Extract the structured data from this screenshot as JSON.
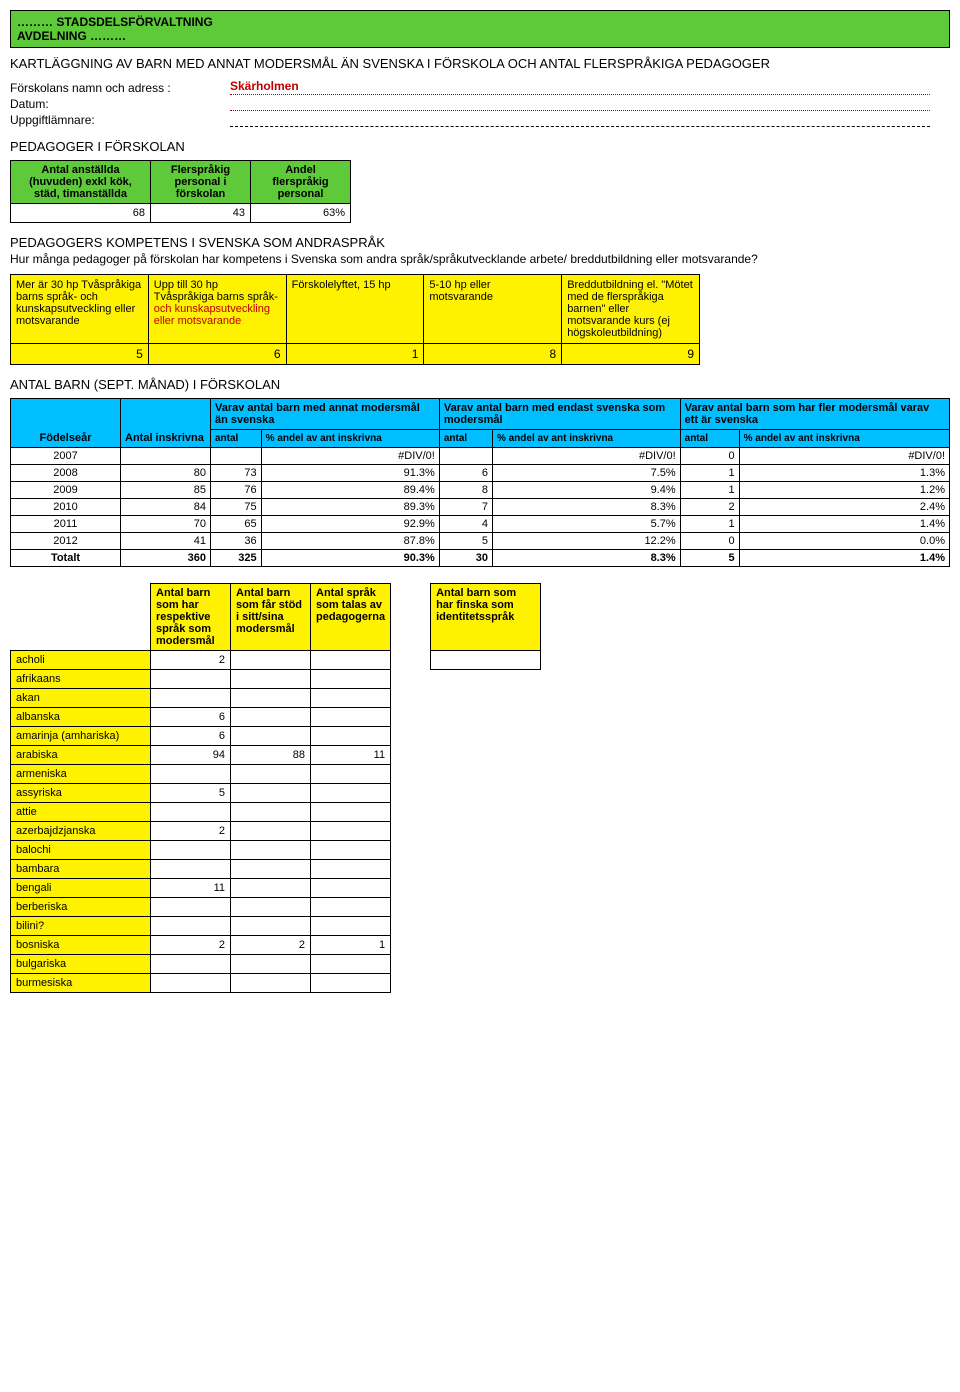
{
  "header": {
    "line1": "……… STADSDELSFÖRVALTNING",
    "line2": "AVDELNING ………"
  },
  "title": "KARTLÄGGNING AV BARN MED ANNAT MODERSMÅL ÄN SVENSKA I FÖRSKOLA OCH ANTAL FLERSPRÅKIGA PEDAGOGER",
  "info": {
    "label1": "Förskolans namn och adress :",
    "val1": "Skärholmen",
    "label2": "Datum:",
    "label3": "Uppgiftlämnare:"
  },
  "section1": "PEDAGOGER I FÖRSKOLAN",
  "t1": {
    "h1": "Antal anställda (huvuden) exkl kök, städ, timanställda",
    "h2": "Flerspråkig personal i förskolan",
    "h3": "Andel flerspråkig personal",
    "v1": "68",
    "v2": "43",
    "v3": "63%"
  },
  "section2_title": "PEDAGOGERS KOMPETENS I SVENSKA SOM ANDRASPRÅK",
  "section2_text": "Hur många pedagoger på förskolan har kompetens i Svenska som andra språk/språkutvecklande arbete/ breddutbildning eller motsvarande?",
  "t2": {
    "h1": "Mer är 30 hp Tvåspråkiga barns språk- och kunskapsutveckling eller motsvarande",
    "h2": "Upp till 30 hp Tvåspråkiga barns språk- och kunskapsutveckling eller motsvarande",
    "h2_black": "Upp till 30 hp Tvåspråkiga barns språk-",
    "h2_red": "och kunskapsutveckling eller motsvarande",
    "h3": "Förskolelyftet, 15 hp",
    "h4": "5-10 hp eller motsvarande",
    "h5": "Breddutbildning el. \"Mötet med de flerspråkiga barnen\" eller motsvarande kurs (ej högskoleutbildning)",
    "v1": "5",
    "v2": "6",
    "v3": "1",
    "v4": "8",
    "v5": "9"
  },
  "section3": "ANTAL BARN (SEPT. MÅNAD) I FÖRSKOLAN",
  "t3": {
    "h_year": "Födelseår",
    "h_enrolled": "Antal inskrivna",
    "h_group1": "Varav antal barn med annat modersmål än svenska",
    "h_group2": "Varav antal barn med endast svenska som modersmål",
    "h_group3": "Varav antal barn som har fler modersmål varav ett är svenska",
    "sub_a": "antal",
    "sub_p": "% andel av ant inskrivna",
    "rows": [
      {
        "year": "2007",
        "enrolled": "",
        "a1": "",
        "p1": "#DIV/0!",
        "a2": "",
        "p2": "#DIV/0!",
        "a3": "0",
        "p3": "#DIV/0!"
      },
      {
        "year": "2008",
        "enrolled": "80",
        "a1": "73",
        "p1": "91.3%",
        "a2": "6",
        "p2": "7.5%",
        "a3": "1",
        "p3": "1.3%"
      },
      {
        "year": "2009",
        "enrolled": "85",
        "a1": "76",
        "p1": "89.4%",
        "a2": "8",
        "p2": "9.4%",
        "a3": "1",
        "p3": "1.2%"
      },
      {
        "year": "2010",
        "enrolled": "84",
        "a1": "75",
        "p1": "89.3%",
        "a2": "7",
        "p2": "8.3%",
        "a3": "2",
        "p3": "2.4%"
      },
      {
        "year": "2011",
        "enrolled": "70",
        "a1": "65",
        "p1": "92.9%",
        "a2": "4",
        "p2": "5.7%",
        "a3": "1",
        "p3": "1.4%"
      },
      {
        "year": "2012",
        "enrolled": "41",
        "a1": "36",
        "p1": "87.8%",
        "a2": "5",
        "p2": "12.2%",
        "a3": "0",
        "p3": "0.0%"
      },
      {
        "year": "Totalt",
        "enrolled": "360",
        "a1": "325",
        "p1": "90.3%",
        "a2": "30",
        "p2": "8.3%",
        "a3": "5",
        "p3": "1.4%"
      }
    ]
  },
  "t4": {
    "h1": "Antal  barn som har respektive språk som modersmål",
    "h2": "Antal barn som får stöd i sitt/sina modersmål",
    "h3": "Antal språk som talas av pedagogerna",
    "h4": "Antal barn som har finska som identitetsspråk",
    "rows": [
      {
        "lang": "acholi",
        "v1": "2",
        "v2": "",
        "v3": ""
      },
      {
        "lang": "afrikaans",
        "v1": "",
        "v2": "",
        "v3": ""
      },
      {
        "lang": "akan",
        "v1": "",
        "v2": "",
        "v3": ""
      },
      {
        "lang": "albanska",
        "v1": "6",
        "v2": "",
        "v3": ""
      },
      {
        "lang": "amarinja (amhariska)",
        "v1": "6",
        "v2": "",
        "v3": ""
      },
      {
        "lang": "arabiska",
        "v1": "94",
        "v2": "88",
        "v3": "11"
      },
      {
        "lang": "armeniska",
        "v1": "",
        "v2": "",
        "v3": ""
      },
      {
        "lang": "assyriska",
        "v1": "5",
        "v2": "",
        "v3": ""
      },
      {
        "lang": "attie",
        "v1": "",
        "v2": "",
        "v3": ""
      },
      {
        "lang": "azerbajdzjanska",
        "v1": "2",
        "v2": "",
        "v3": ""
      },
      {
        "lang": "balochi",
        "v1": "",
        "v2": "",
        "v3": ""
      },
      {
        "lang": "bambara",
        "v1": "",
        "v2": "",
        "v3": ""
      },
      {
        "lang": "bengali",
        "v1": "11",
        "v2": "",
        "v3": ""
      },
      {
        "lang": "berberiska",
        "v1": "",
        "v2": "",
        "v3": ""
      },
      {
        "lang": "bilini?",
        "v1": "",
        "v2": "",
        "v3": ""
      },
      {
        "lang": "bosniska",
        "v1": "2",
        "v2": "2",
        "v3": "1"
      },
      {
        "lang": "bulgariska",
        "v1": "",
        "v2": "",
        "v3": ""
      },
      {
        "lang": "burmesiska",
        "v1": "",
        "v2": "",
        "v3": ""
      }
    ]
  }
}
